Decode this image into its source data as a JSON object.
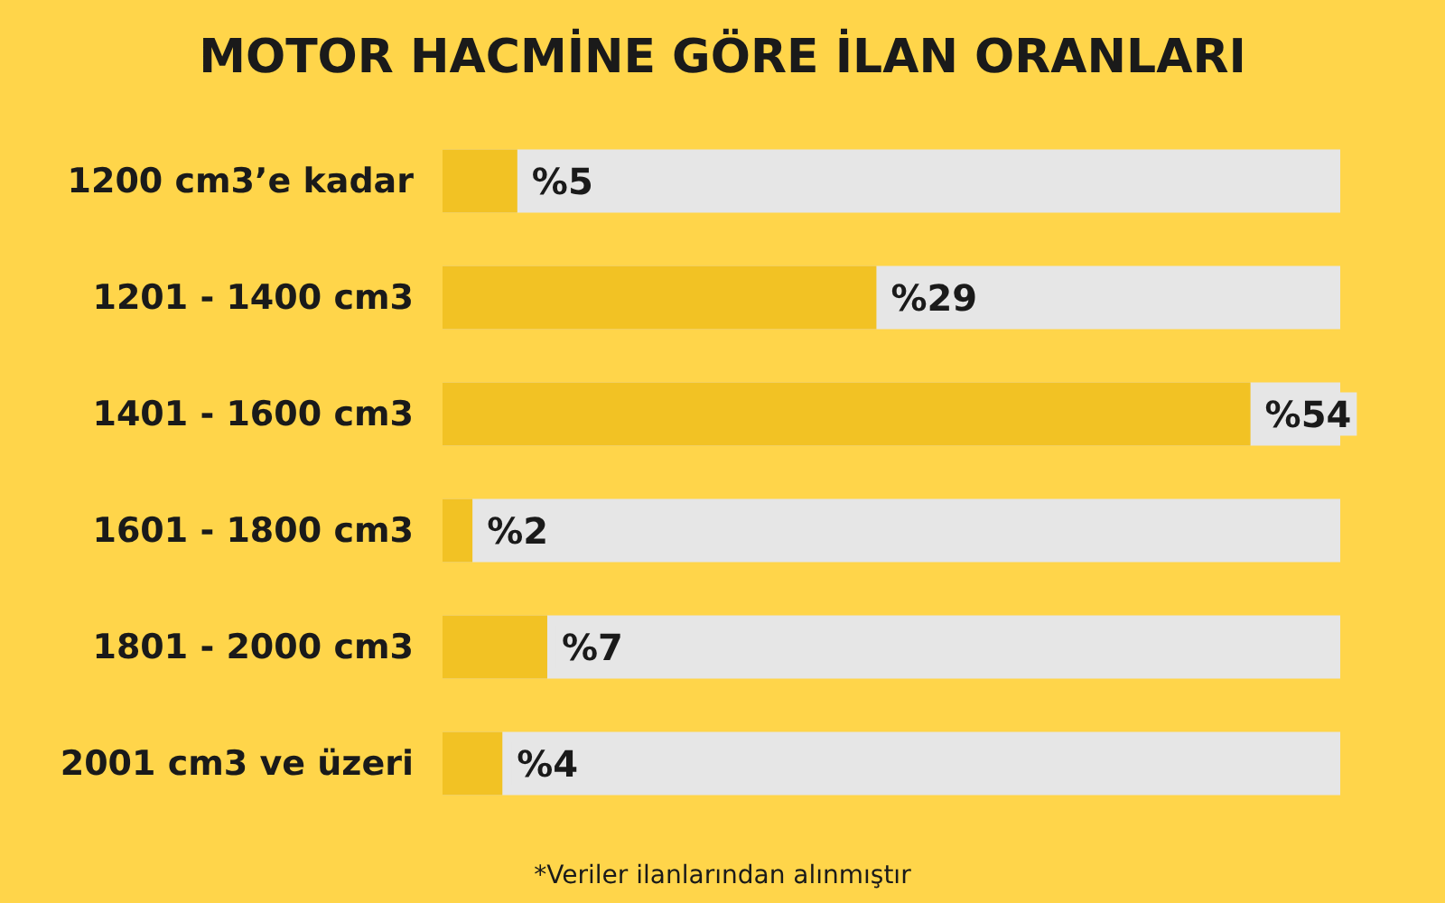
{
  "chart_data": {
    "type": "bar",
    "orientation": "horizontal",
    "title": "MOTOR HACMİNE GÖRE İLAN ORANLARI",
    "categories": [
      "1200 cm3’e kadar",
      "1201 - 1400 cm3",
      "1401 - 1600 cm3",
      "1601 - 1800 cm3",
      "1801 - 2000 cm3",
      "2001 cm3 ve üzeri"
    ],
    "values": [
      5,
      29,
      54,
      2,
      7,
      4
    ],
    "value_labels": [
      "%5",
      "%29",
      "%54",
      "%2",
      "%7",
      "%4"
    ],
    "color": "#f2c224",
    "annotations": [
      "*Veriler ilanlarından alınmıştır"
    ]
  }
}
